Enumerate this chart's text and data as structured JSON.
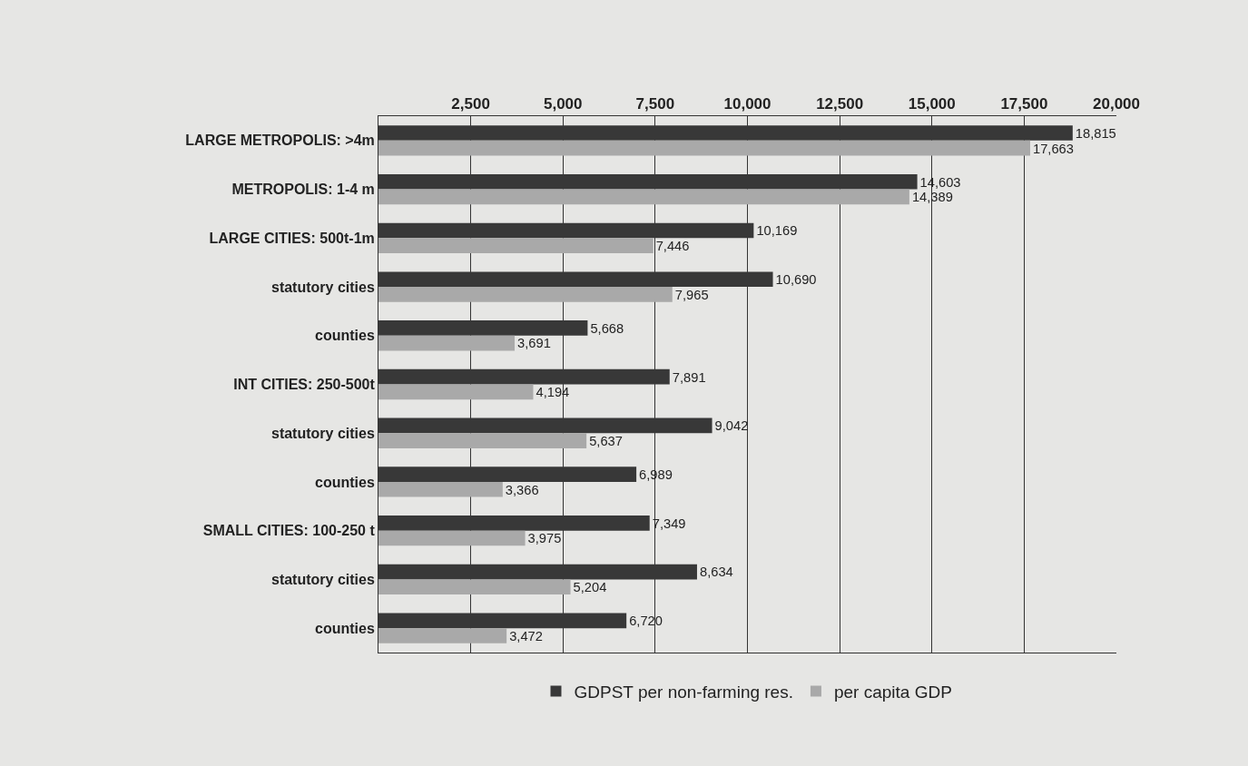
{
  "chart_data": {
    "type": "bar",
    "orientation": "horizontal",
    "categories": [
      "LARGE METROPOLIS: >4m",
      "METROPOLIS: 1-4 m",
      "LARGE CITIES: 500t-1m",
      "statutory cities",
      "counties",
      "INT CITIES: 250-500t",
      "statutory cities",
      "counties",
      "SMALL CITIES: 100-250 t",
      "statutory cities",
      "counties"
    ],
    "series": [
      {
        "name": "GDPST per non-farming res.",
        "color": "#383838",
        "values": [
          18815,
          14603,
          10169,
          10690,
          5668,
          7891,
          9042,
          6989,
          7349,
          8634,
          6720
        ],
        "value_labels": [
          "18,815",
          "14,603",
          "10,169",
          "10,690",
          "5,668",
          "7,891",
          "9,042",
          "6,989",
          "7,349",
          "8,634",
          "6,720"
        ]
      },
      {
        "name": "per capita GDP",
        "color": "#a9a9a9",
        "values": [
          17663,
          14389,
          7446,
          7965,
          3691,
          4194,
          5637,
          3366,
          3975,
          5204,
          3472
        ],
        "value_labels": [
          "17,663",
          "14,389",
          "7,446",
          "7,965",
          "3,691",
          "4,194",
          "5,637",
          "3,366",
          "3,975",
          "5,204",
          "3,472"
        ]
      }
    ],
    "xlim": [
      0,
      20000
    ],
    "xticks": [
      {
        "value": 0,
        "label": null
      },
      {
        "value": 2500,
        "label": "2,500"
      },
      {
        "value": 5000,
        "label": "5,000"
      },
      {
        "value": 7500,
        "label": "7,500"
      },
      {
        "value": 10000,
        "label": "10,000"
      },
      {
        "value": 12500,
        "label": "12,500"
      },
      {
        "value": 15000,
        "label": "15,000"
      },
      {
        "value": 17500,
        "label": "17,500"
      },
      {
        "value": 20000,
        "label": "20,000"
      }
    ],
    "grid": "x",
    "legend": "bottom"
  }
}
